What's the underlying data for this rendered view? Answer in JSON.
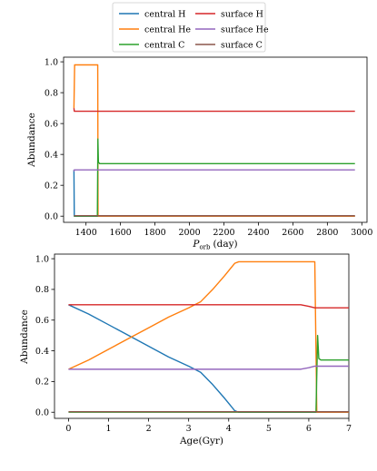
{
  "legend": {
    "placement": "top-center",
    "columns": [
      [
        "central H",
        "central He",
        "central C"
      ],
      [
        "surface H",
        "surface He",
        "surface C"
      ]
    ]
  },
  "colors": {
    "central H": "#1f77b4",
    "central He": "#ff7f0e",
    "central C": "#2ca02c",
    "surface H": "#d62728",
    "surface He": "#9467bd",
    "surface C": "#8c564b"
  },
  "chart_data": [
    {
      "type": "line",
      "xlabel": "P_orb (day)",
      "xlabel_parts": {
        "symbol": "P",
        "subscript": "orb",
        "unit": "(day)"
      },
      "ylabel": "Abundance",
      "xlim": [
        1270,
        3030
      ],
      "ylim": [
        -0.04,
        1.03
      ],
      "xticks": [
        1400,
        1600,
        1800,
        2000,
        2200,
        2400,
        2600,
        2800,
        3000
      ],
      "yticks": [
        0.0,
        0.2,
        0.4,
        0.6,
        0.8,
        1.0
      ],
      "ytick_labels": [
        "0.0",
        "0.2",
        "0.4",
        "0.6",
        "0.8",
        "1.0"
      ],
      "series": [
        {
          "name": "central H",
          "points": [
            [
              1330,
              0.3
            ],
            [
              1332,
              0.0
            ],
            [
              2960,
              0.0
            ]
          ]
        },
        {
          "name": "central He",
          "points": [
            [
              1330,
              0.7
            ],
            [
              1334,
              0.98
            ],
            [
              1468,
              0.98
            ],
            [
              1470,
              0.0
            ],
            [
              2960,
              0.0
            ]
          ]
        },
        {
          "name": "central C",
          "points": [
            [
              1330,
              0.0
            ],
            [
              1466,
              0.0
            ],
            [
              1469,
              0.5
            ],
            [
              1472,
              0.35
            ],
            [
              1480,
              0.34
            ],
            [
              2960,
              0.34
            ]
          ]
        },
        {
          "name": "surface H",
          "points": [
            [
              1330,
              0.7
            ],
            [
              1332,
              0.68
            ],
            [
              2960,
              0.68
            ]
          ]
        },
        {
          "name": "surface He",
          "points": [
            [
              1330,
              0.29
            ],
            [
              1332,
              0.3
            ],
            [
              2960,
              0.3
            ]
          ]
        },
        {
          "name": "surface C",
          "points": [
            [
              1330,
              0.003
            ],
            [
              2960,
              0.003
            ]
          ]
        }
      ]
    },
    {
      "type": "line",
      "xlabel": "Age(Gyr)",
      "ylabel": "Abundance",
      "xlim": [
        -0.35,
        7.0
      ],
      "ylim": [
        -0.04,
        1.03
      ],
      "xticks": [
        0,
        1,
        2,
        3,
        4,
        5,
        6,
        7
      ],
      "yticks": [
        0.0,
        0.2,
        0.4,
        0.6,
        0.8,
        1.0
      ],
      "ytick_labels": [
        "0.0",
        "0.2",
        "0.4",
        "0.6",
        "0.8",
        "1.0"
      ],
      "series": [
        {
          "name": "central H",
          "points": [
            [
              0,
              0.7
            ],
            [
              0.5,
              0.64
            ],
            [
              1.0,
              0.57
            ],
            [
              1.5,
              0.5
            ],
            [
              2.0,
              0.43
            ],
            [
              2.5,
              0.36
            ],
            [
              3.0,
              0.3
            ],
            [
              3.3,
              0.26
            ],
            [
              3.6,
              0.18
            ],
            [
              3.9,
              0.09
            ],
            [
              4.15,
              0.01
            ],
            [
              4.25,
              0.0
            ],
            [
              7.0,
              0.0
            ]
          ]
        },
        {
          "name": "central He",
          "points": [
            [
              0,
              0.28
            ],
            [
              0.5,
              0.34
            ],
            [
              1.0,
              0.41
            ],
            [
              1.5,
              0.48
            ],
            [
              2.0,
              0.55
            ],
            [
              2.5,
              0.62
            ],
            [
              3.0,
              0.68
            ],
            [
              3.3,
              0.72
            ],
            [
              3.6,
              0.8
            ],
            [
              3.9,
              0.89
            ],
            [
              4.15,
              0.97
            ],
            [
              4.25,
              0.98
            ],
            [
              6.15,
              0.98
            ],
            [
              6.2,
              0.0
            ],
            [
              7.0,
              0.0
            ]
          ]
        },
        {
          "name": "central C",
          "points": [
            [
              0,
              0.0
            ],
            [
              6.18,
              0.0
            ],
            [
              6.22,
              0.5
            ],
            [
              6.25,
              0.35
            ],
            [
              6.3,
              0.34
            ],
            [
              7.0,
              0.34
            ]
          ]
        },
        {
          "name": "surface H",
          "points": [
            [
              0,
              0.7
            ],
            [
              5.8,
              0.7
            ],
            [
              6.0,
              0.69
            ],
            [
              6.15,
              0.68
            ],
            [
              7.0,
              0.68
            ]
          ]
        },
        {
          "name": "surface He",
          "points": [
            [
              0,
              0.28
            ],
            [
              5.8,
              0.28
            ],
            [
              6.0,
              0.29
            ],
            [
              6.15,
              0.3
            ],
            [
              7.0,
              0.3
            ]
          ]
        },
        {
          "name": "surface C",
          "points": [
            [
              0,
              0.003
            ],
            [
              7.0,
              0.003
            ]
          ]
        }
      ]
    }
  ]
}
